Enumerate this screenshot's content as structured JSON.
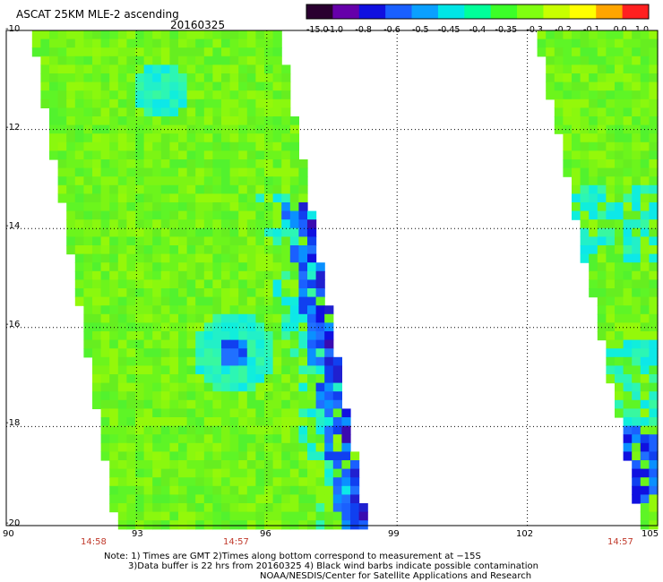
{
  "header": {
    "title": "ASCAT 25KM MLE-2 ascending",
    "date": "20160325"
  },
  "colorbar": {
    "labels": [
      "-15.0",
      "-1.0",
      "-0.8",
      "-0.6",
      "-0.5",
      "-0.45",
      "-0.4",
      "-0.35",
      "-0.3",
      "-0.2",
      "-0.1",
      "0.0",
      "1.0"
    ],
    "colors": [
      "#2a0030",
      "#6600aa",
      "#1010e0",
      "#1a60ff",
      "#0aa0ff",
      "#00e6e6",
      "#00ff9a",
      "#3cff28",
      "#80ff10",
      "#c8ff00",
      "#ffff00",
      "#ffa500",
      "#ff2020"
    ]
  },
  "axes": {
    "lat_ticks": [
      "-10",
      "-12",
      "-14",
      "-16",
      "-18",
      "-20"
    ],
    "lon_ticks": [
      "90",
      "93",
      "96",
      "99",
      "102",
      "105"
    ],
    "time_labels": [
      {
        "lon": 92,
        "text": "14:58"
      },
      {
        "lon": 95,
        "text": "14:57"
      },
      {
        "lon": 104,
        "text": "14:57"
      }
    ]
  },
  "notes": {
    "line1": "Note: 1) Times are GMT 2)Times along bottom correspond to measurement at −15S",
    "line2": "3)Data buffer is 22 hrs from 20160325 4) Black wind barbs indicate possible contamination",
    "line3": "NOAA/NESDIS/Center for Satellite Applications and Research"
  }
}
